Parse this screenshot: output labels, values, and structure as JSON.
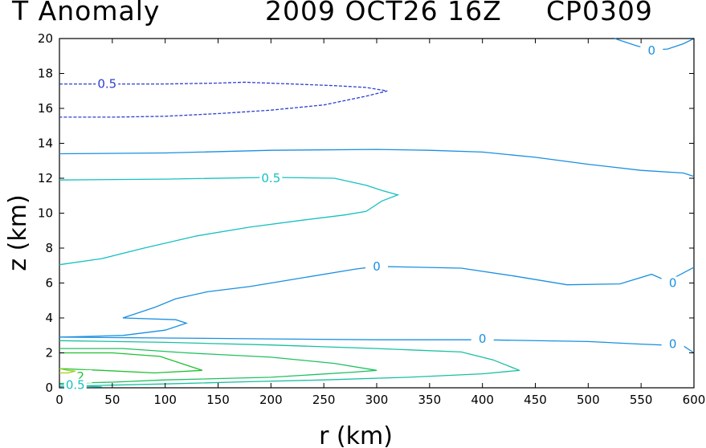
{
  "header": {
    "title": "T Anomaly",
    "datetime": "2009 OCT26 16Z",
    "storm_id": "CP0309"
  },
  "chart_data": {
    "type": "contour",
    "xlabel": "r  (km)",
    "ylabel": "z  (km)",
    "xlim": [
      0,
      600
    ],
    "ylim": [
      0,
      20
    ],
    "x_ticks": [
      "0",
      "50",
      "100",
      "150",
      "200",
      "250",
      "300",
      "350",
      "400",
      "450",
      "500",
      "550",
      "600"
    ],
    "y_ticks": [
      "0",
      "2",
      "4",
      "6",
      "8",
      "10",
      "12",
      "14",
      "16",
      "18",
      "20"
    ],
    "grid": false,
    "contours": [
      {
        "level_label": "0.5",
        "dashed": true,
        "color": "#2a3fd0",
        "points": [
          [
            0,
            17.4
          ],
          [
            50,
            17.4
          ],
          [
            100,
            17.4
          ],
          [
            150,
            17.45
          ],
          [
            175,
            17.5
          ],
          [
            220,
            17.4
          ],
          [
            260,
            17.3
          ],
          [
            290,
            17.2
          ],
          [
            310,
            17.0
          ],
          [
            290,
            16.7
          ],
          [
            250,
            16.2
          ],
          [
            200,
            15.9
          ],
          [
            150,
            15.7
          ],
          [
            100,
            15.55
          ],
          [
            50,
            15.5
          ],
          [
            0,
            15.5
          ]
        ],
        "labels": [
          [
            45,
            17.4
          ]
        ]
      },
      {
        "level_label": "",
        "dashed": false,
        "color": "#1a8fe0",
        "points": [
          [
            0,
            13.4
          ],
          [
            100,
            13.45
          ],
          [
            200,
            13.6
          ],
          [
            300,
            13.65
          ],
          [
            350,
            13.6
          ],
          [
            400,
            13.5
          ],
          [
            450,
            13.2
          ],
          [
            500,
            12.8
          ],
          [
            550,
            12.45
          ],
          [
            590,
            12.3
          ],
          [
            600,
            12.1
          ]
        ],
        "labels": []
      },
      {
        "level_label": "0",
        "dashed": false,
        "color": "#1a8fe0",
        "points": [
          [
            525,
            20.0
          ],
          [
            545,
            19.6
          ],
          [
            560,
            19.35
          ],
          [
            575,
            19.4
          ],
          [
            590,
            19.7
          ],
          [
            600,
            20.0
          ]
        ],
        "labels": [
          [
            560,
            19.3
          ]
        ]
      },
      {
        "level_label": "0.5",
        "dashed": false,
        "color": "#18c0c0",
        "points": [
          [
            0,
            11.9
          ],
          [
            100,
            11.95
          ],
          [
            200,
            12.05
          ],
          [
            260,
            12.0
          ],
          [
            290,
            11.6
          ],
          [
            305,
            11.3
          ],
          [
            320,
            11.05
          ],
          [
            305,
            10.7
          ],
          [
            295,
            10.3
          ],
          [
            290,
            10.1
          ],
          [
            270,
            9.9
          ],
          [
            230,
            9.6
          ],
          [
            180,
            9.2
          ],
          [
            130,
            8.7
          ],
          [
            80,
            8.0
          ],
          [
            40,
            7.4
          ],
          [
            0,
            7.05
          ]
        ],
        "labels": [
          [
            200,
            12.0
          ]
        ]
      },
      {
        "level_label": "0",
        "dashed": false,
        "color": "#1a8fe0",
        "points": [
          [
            0,
            2.9
          ],
          [
            60,
            3.0
          ],
          [
            100,
            3.3
          ],
          [
            120,
            3.7
          ],
          [
            110,
            3.9
          ],
          [
            60,
            4.0
          ],
          [
            90,
            4.6
          ],
          [
            110,
            5.1
          ],
          [
            140,
            5.5
          ],
          [
            180,
            5.8
          ],
          [
            230,
            6.3
          ],
          [
            280,
            6.8
          ],
          [
            300,
            6.95
          ],
          [
            340,
            6.9
          ],
          [
            380,
            6.85
          ],
          [
            430,
            6.4
          ],
          [
            480,
            5.9
          ],
          [
            530,
            5.95
          ],
          [
            560,
            6.5
          ],
          [
            575,
            6.1
          ],
          [
            600,
            6.9
          ]
        ],
        "labels": [
          [
            300,
            6.95
          ],
          [
            580,
            6.0
          ]
        ]
      },
      {
        "level_label": "0",
        "dashed": false,
        "color": "#1a8fe0",
        "points": [
          [
            0,
            2.9
          ],
          [
            100,
            2.85
          ],
          [
            200,
            2.8
          ],
          [
            300,
            2.75
          ],
          [
            400,
            2.75
          ],
          [
            500,
            2.65
          ],
          [
            550,
            2.5
          ],
          [
            590,
            2.4
          ],
          [
            600,
            2.0
          ]
        ],
        "labels": [
          [
            400,
            2.8
          ],
          [
            580,
            2.5
          ]
        ]
      },
      {
        "level_label": "",
        "dashed": false,
        "color": "#18c0a0",
        "points": [
          [
            0,
            2.7
          ],
          [
            100,
            2.6
          ],
          [
            200,
            2.45
          ],
          [
            300,
            2.25
          ],
          [
            380,
            2.05
          ],
          [
            410,
            1.6
          ],
          [
            435,
            1.0
          ],
          [
            400,
            0.8
          ],
          [
            330,
            0.6
          ],
          [
            250,
            0.45
          ],
          [
            180,
            0.35
          ],
          [
            100,
            0.22
          ],
          [
            50,
            0.15
          ],
          [
            0,
            0.08
          ]
        ],
        "labels": []
      },
      {
        "level_label": "",
        "dashed": false,
        "color": "#20c060",
        "points": [
          [
            0,
            2.25
          ],
          [
            60,
            2.25
          ],
          [
            120,
            2.0
          ],
          [
            200,
            1.75
          ],
          [
            260,
            1.4
          ],
          [
            300,
            1.0
          ],
          [
            280,
            0.9
          ],
          [
            200,
            0.6
          ],
          [
            100,
            0.45
          ],
          [
            50,
            0.32
          ],
          [
            0,
            0.25
          ]
        ],
        "labels": []
      },
      {
        "level_label": "2",
        "dashed": false,
        "color": "#20c030",
        "points": [
          [
            0,
            1.1
          ],
          [
            40,
            1.0
          ],
          [
            90,
            0.85
          ],
          [
            135,
            1.0
          ],
          [
            120,
            1.3
          ],
          [
            95,
            1.8
          ],
          [
            50,
            2.0
          ],
          [
            0,
            2.0
          ]
        ],
        "labels": [
          [
            20,
            0.65
          ]
        ]
      },
      {
        "level_label": "",
        "dashed": false,
        "color": "#a0d020",
        "points": [
          [
            0,
            1.1
          ],
          [
            8,
            1.0
          ],
          [
            15,
            0.95
          ],
          [
            8,
            0.85
          ],
          [
            0,
            0.85
          ]
        ],
        "labels": []
      },
      {
        "level_label": "0.5",
        "dashed": false,
        "color": "#18c0c0",
        "points": [
          [
            0,
            0.2
          ],
          [
            20,
            0.1
          ],
          [
            40,
            0.05
          ]
        ],
        "labels": [
          [
            15,
            0.15
          ]
        ]
      }
    ]
  }
}
